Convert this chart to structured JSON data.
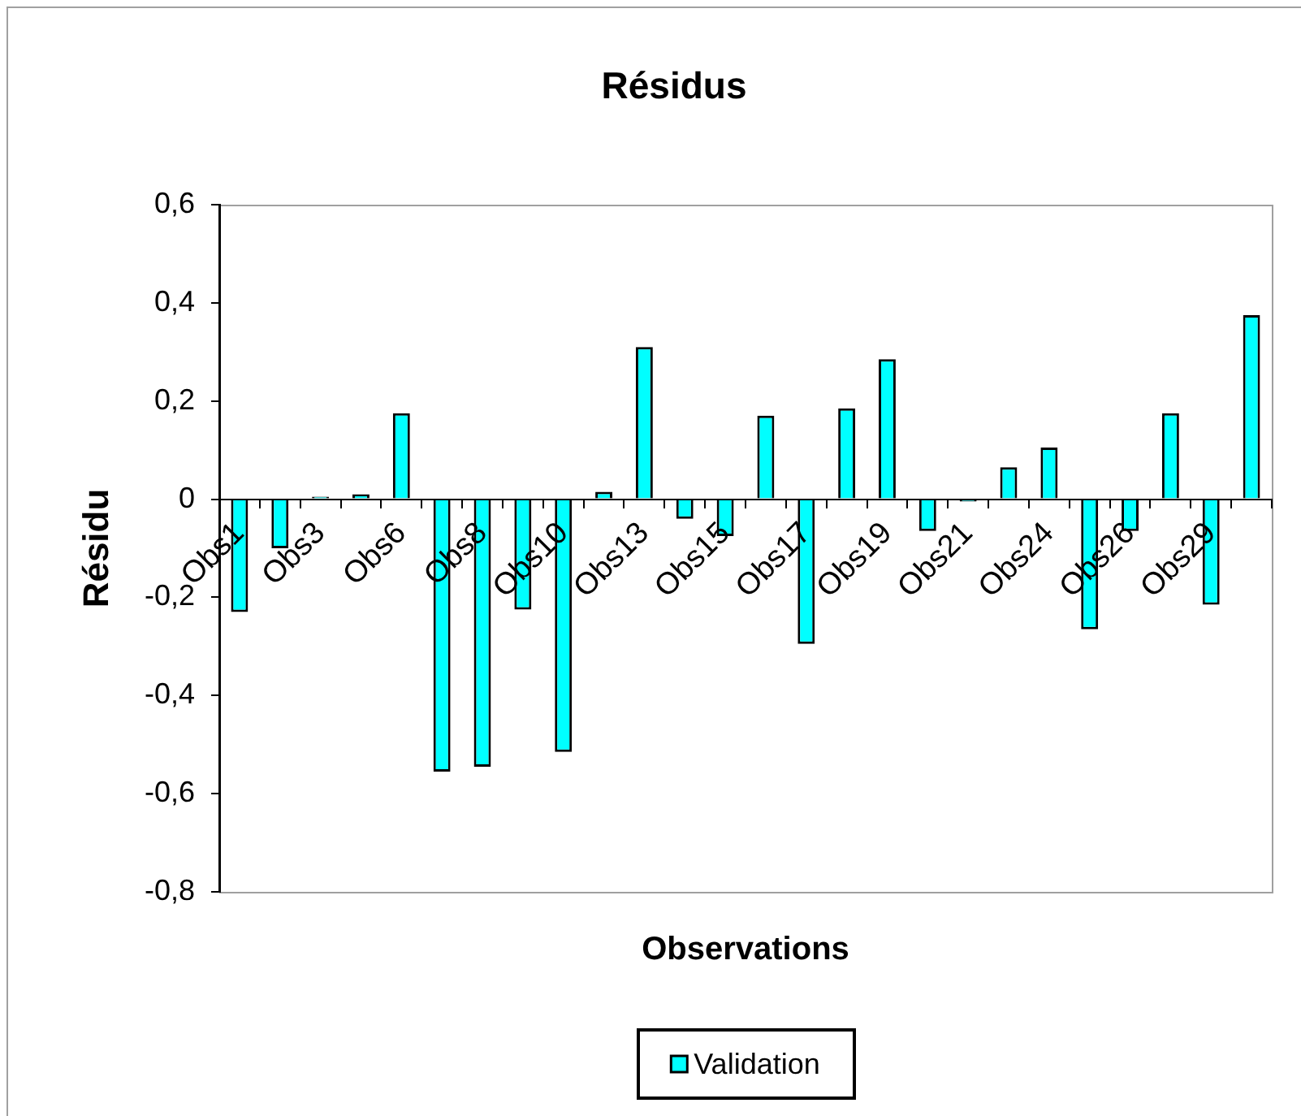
{
  "chart_data": {
    "type": "bar",
    "title": "Résidus",
    "xlabel": "Observations",
    "ylabel": "Résidu",
    "categories": [
      "Obs1",
      null,
      "Obs3",
      null,
      "Obs6",
      null,
      "Obs8",
      null,
      "Obs10",
      null,
      "Obs13",
      null,
      "Obs15",
      null,
      "Obs17",
      null,
      "Obs19",
      null,
      "Obs21",
      null,
      "Obs24",
      null,
      "Obs26",
      null,
      "Obs29",
      null
    ],
    "series": [
      {
        "name": "Validation",
        "color": "#00ffff",
        "values": [
          -0.23,
          -0.1,
          0.005,
          0.01,
          0.175,
          -0.555,
          -0.545,
          -0.225,
          -0.515,
          0.015,
          0.31,
          -0.04,
          -0.075,
          0.17,
          -0.295,
          0.185,
          0.285,
          -0.065,
          -0.005,
          0.065,
          0.105,
          -0.265,
          -0.065,
          0.175,
          -0.215,
          0.375
        ]
      }
    ],
    "ylim": [
      -0.8,
      0.6
    ],
    "yticks": [
      {
        "value": -0.8,
        "label": "-0,8"
      },
      {
        "value": -0.6,
        "label": "-0,6"
      },
      {
        "value": -0.4,
        "label": "-0,4"
      },
      {
        "value": -0.2,
        "label": "-0,2"
      },
      0,
      {
        "value": 0.2,
        "label": "0,2"
      },
      {
        "value": 0.4,
        "label": "0,4"
      },
      {
        "value": 0.6,
        "label": "0,6"
      }
    ],
    "grid": false,
    "legend": "bottom"
  }
}
